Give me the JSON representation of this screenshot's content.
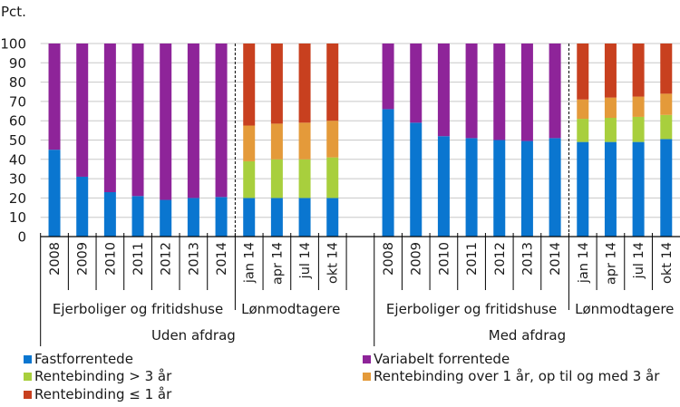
{
  "chart_data": {
    "type": "bar",
    "stacked": true,
    "ylabel": "Pct.",
    "ylim": [
      0,
      100
    ],
    "yticks": [
      0,
      10,
      20,
      30,
      40,
      50,
      60,
      70,
      80,
      90,
      100
    ],
    "grid": true,
    "legend_position": "bottom",
    "categories": [
      "2008",
      "2009",
      "2010",
      "2011",
      "2012",
      "2013",
      "2014",
      "jan 14",
      "apr 14",
      "jul 14",
      "okt 14",
      "",
      "2008",
      "2009",
      "2010",
      "2011",
      "2012",
      "2013",
      "2014",
      "jan 14",
      "apr 14",
      "jul 14",
      "okt 14"
    ],
    "groups": [
      {
        "label": "Ejerboliger og fritidshuse",
        "parent": "Uden afdrag",
        "from": 0,
        "to": 6
      },
      {
        "label": "Lønmodtagere",
        "parent": "Uden afdrag",
        "from": 7,
        "to": 10
      },
      {
        "label": "Ejerboliger og fritidshuse",
        "parent": "Med afdrag",
        "from": 12,
        "to": 18
      },
      {
        "label": "Lønmodtagere",
        "parent": "Med afdrag",
        "from": 19,
        "to": 22
      }
    ],
    "supergroups": [
      {
        "label": "Uden afdrag",
        "from": 0,
        "to": 10
      },
      {
        "label": "Med afdrag",
        "from": 12,
        "to": 22
      }
    ],
    "dashed_separators_after": [
      6,
      18
    ],
    "series": [
      {
        "name": "Fastforrentede",
        "color": "#0A76D0",
        "values": [
          45,
          31,
          23,
          21,
          19,
          20,
          20.5,
          20,
          20,
          20,
          20,
          null,
          66,
          59,
          52,
          51,
          50,
          49.5,
          51,
          49,
          49,
          49,
          50.5
        ]
      },
      {
        "name": "Variabelt forrentede",
        "color": "#8E2499",
        "values": [
          55,
          69,
          77,
          79,
          81,
          80,
          79.5,
          null,
          null,
          null,
          null,
          null,
          34,
          41,
          48,
          49,
          50,
          50.5,
          49,
          null,
          null,
          null,
          null
        ]
      },
      {
        "name": "Rentebinding > 3 år",
        "color": "#A8CF3D",
        "values": [
          null,
          null,
          null,
          null,
          null,
          null,
          null,
          19,
          20,
          20,
          21,
          null,
          null,
          null,
          null,
          null,
          null,
          null,
          null,
          12,
          12.5,
          13,
          12.5
        ]
      },
      {
        "name": "Rentebinding over 1 år, op til og med 3 år",
        "color": "#E49A3A",
        "values": [
          null,
          null,
          null,
          null,
          null,
          null,
          null,
          18.5,
          18.5,
          19,
          19,
          null,
          null,
          null,
          null,
          null,
          null,
          null,
          null,
          10,
          10.5,
          10.5,
          11
        ]
      },
      {
        "name": "Rentebinding ≤ 1 år",
        "color": "#C8401F",
        "values": [
          null,
          null,
          null,
          null,
          null,
          null,
          null,
          42.5,
          41.5,
          41,
          40,
          null,
          null,
          null,
          null,
          null,
          null,
          null,
          null,
          29,
          28,
          27.5,
          26
        ]
      }
    ]
  },
  "legend": [
    {
      "label": "Fastforrentede",
      "color": "#0A76D0"
    },
    {
      "label": "Variabelt forrentede",
      "color": "#8E2499"
    },
    {
      "label": "Rentebinding > 3 år",
      "color": "#A8CF3D"
    },
    {
      "label": "Rentebinding over 1 år, op til og med 3 år",
      "color": "#E49A3A"
    },
    {
      "label": "Rentebinding ≤ 1 år",
      "color": "#C8401F"
    }
  ]
}
